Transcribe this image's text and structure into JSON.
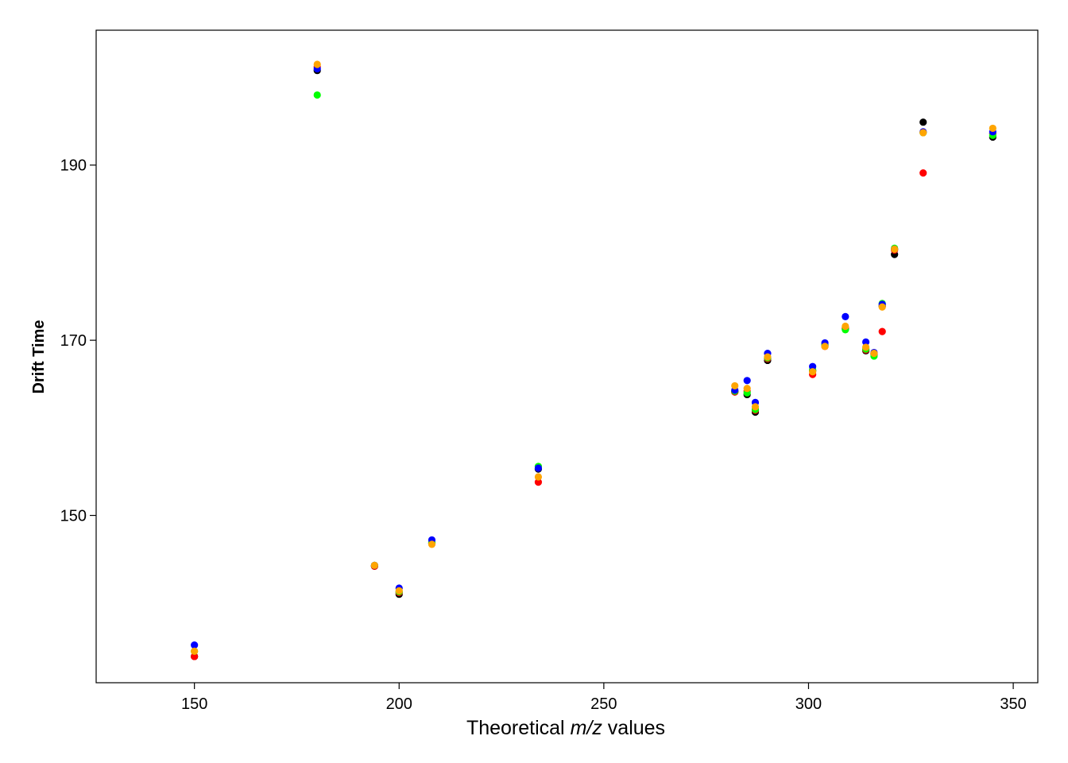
{
  "chart_data": {
    "type": "scatter",
    "title": "",
    "xlabel": {
      "prefix": "Theoretical ",
      "italic": "m/z",
      "suffix": " values"
    },
    "ylabel": "Drift Time",
    "xlim": [
      126,
      356
    ],
    "ylim": [
      130.9,
      205.4
    ],
    "x_ticks": [
      150,
      200,
      250,
      300,
      350
    ],
    "x_tick_labels": [
      "150",
      "200",
      "250",
      "300",
      "350"
    ],
    "y_ticks": [
      150,
      170,
      190
    ],
    "y_tick_labels": [
      "150",
      "170",
      "190"
    ],
    "grid": false,
    "legend": "none",
    "series": [
      {
        "color": "#000000",
        "points": [
          [
            150,
            133.9
          ],
          [
            180,
            200.8
          ],
          [
            194,
            144.2
          ],
          [
            200,
            141.0
          ],
          [
            208,
            146.8
          ],
          [
            234,
            155.3
          ],
          [
            282,
            164.1
          ],
          [
            285,
            163.8
          ],
          [
            287,
            161.8
          ],
          [
            290,
            167.7
          ],
          [
            301,
            166.5
          ],
          [
            304,
            169.4
          ],
          [
            309,
            171.3
          ],
          [
            314,
            168.8
          ],
          [
            316,
            168.4
          ],
          [
            318,
            173.9
          ],
          [
            321,
            179.8
          ],
          [
            328,
            194.9
          ],
          [
            345,
            193.2
          ]
        ]
      },
      {
        "color": "#ff0000",
        "points": [
          [
            150,
            133.9
          ],
          [
            180,
            201.2
          ],
          [
            194,
            144.2
          ],
          [
            200,
            141.2
          ],
          [
            208,
            146.8
          ],
          [
            234,
            153.8
          ],
          [
            282,
            164.1
          ],
          [
            285,
            164.2
          ],
          [
            287,
            162.0
          ],
          [
            290,
            167.9
          ],
          [
            301,
            166.1
          ],
          [
            304,
            169.3
          ],
          [
            309,
            171.4
          ],
          [
            314,
            168.9
          ],
          [
            316,
            168.5
          ],
          [
            318,
            171.0
          ],
          [
            321,
            180.3
          ],
          [
            328,
            189.1
          ],
          [
            345,
            193.6
          ]
        ]
      },
      {
        "color": "#00ff00",
        "points": [
          [
            150,
            134.5
          ],
          [
            180,
            198.0
          ],
          [
            194,
            144.3
          ],
          [
            200,
            141.3
          ],
          [
            208,
            146.9
          ],
          [
            234,
            155.6
          ],
          [
            282,
            164.2
          ],
          [
            285,
            164.0
          ],
          [
            287,
            162.1
          ],
          [
            290,
            168.0
          ],
          [
            301,
            166.6
          ],
          [
            304,
            169.5
          ],
          [
            309,
            171.2
          ],
          [
            314,
            169.0
          ],
          [
            316,
            168.2
          ],
          [
            318,
            174.2
          ],
          [
            321,
            180.5
          ],
          [
            328,
            193.7
          ],
          [
            345,
            193.4
          ]
        ]
      },
      {
        "color": "#0000ff",
        "points": [
          [
            150,
            135.2
          ],
          [
            180,
            201.0
          ],
          [
            194,
            144.3
          ],
          [
            200,
            141.7
          ],
          [
            208,
            147.2
          ],
          [
            234,
            155.4
          ],
          [
            282,
            164.3
          ],
          [
            285,
            165.4
          ],
          [
            287,
            162.9
          ],
          [
            290,
            168.5
          ],
          [
            301,
            167.0
          ],
          [
            304,
            169.7
          ],
          [
            309,
            172.7
          ],
          [
            314,
            169.8
          ],
          [
            316,
            168.6
          ],
          [
            318,
            174.1
          ],
          [
            321,
            180.4
          ],
          [
            328,
            193.8
          ],
          [
            345,
            193.8
          ]
        ]
      },
      {
        "color": "#ffa500",
        "points": [
          [
            150,
            134.5
          ],
          [
            180,
            201.5
          ],
          [
            194,
            144.3
          ],
          [
            200,
            141.4
          ],
          [
            208,
            146.7
          ],
          [
            234,
            154.4
          ],
          [
            282,
            164.8
          ],
          [
            285,
            164.5
          ],
          [
            287,
            162.4
          ],
          [
            290,
            168.1
          ],
          [
            301,
            166.4
          ],
          [
            304,
            169.3
          ],
          [
            309,
            171.6
          ],
          [
            314,
            169.2
          ],
          [
            316,
            168.5
          ],
          [
            318,
            173.8
          ],
          [
            321,
            180.4
          ],
          [
            328,
            193.7
          ],
          [
            345,
            194.2
          ]
        ]
      }
    ]
  }
}
